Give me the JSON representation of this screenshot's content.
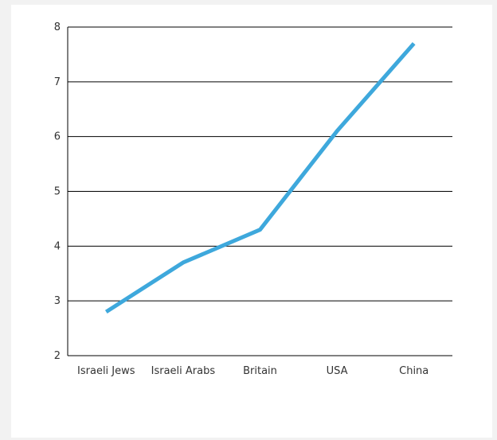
{
  "chart_data": {
    "type": "line",
    "title": "",
    "xlabel": "",
    "ylabel": "",
    "categories": [
      "Israeli Jews",
      "Israeli Arabs",
      "Britain",
      "USA",
      "China"
    ],
    "series": [
      {
        "values": [
          2.8,
          3.7,
          4.3,
          6.1,
          7.7
        ]
      }
    ],
    "ylim": [
      2,
      8
    ],
    "yticks": [
      "2",
      "3",
      "4",
      "5",
      "6",
      "7",
      "8"
    ],
    "grid": true,
    "legend": "none",
    "colors": {
      "line": "#3ea8dc",
      "grid": "#000000"
    }
  }
}
